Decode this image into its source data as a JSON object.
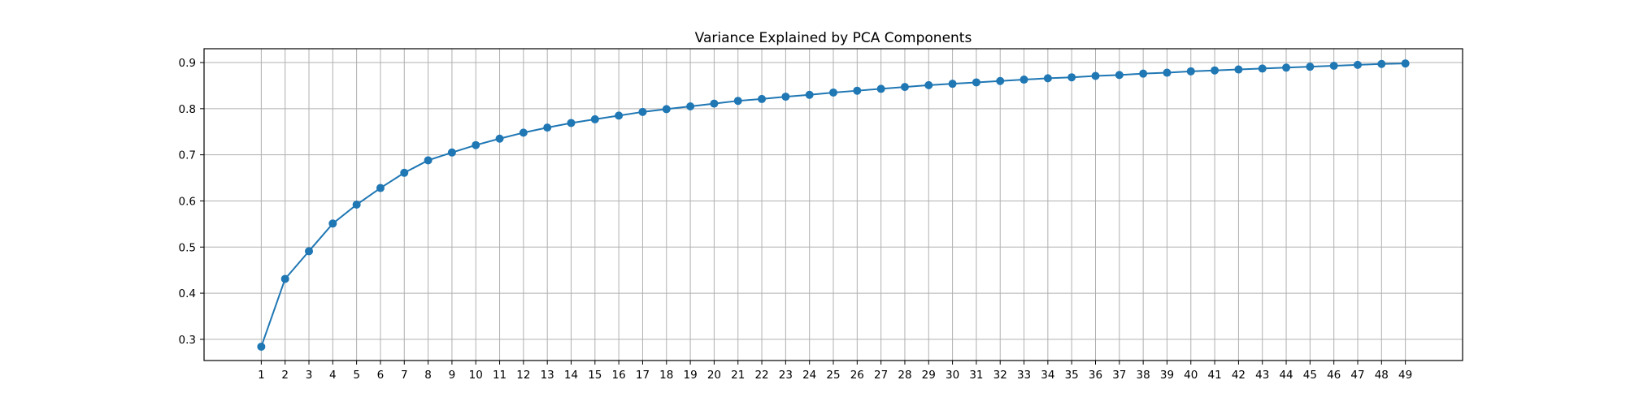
{
  "chart_data": {
    "type": "line",
    "title": "Variance Explained by PCA Components",
    "xlabel": "",
    "ylabel": "",
    "x": [
      1,
      2,
      3,
      4,
      5,
      6,
      7,
      8,
      9,
      10,
      11,
      12,
      13,
      14,
      15,
      16,
      17,
      18,
      19,
      20,
      21,
      22,
      23,
      24,
      25,
      26,
      27,
      28,
      29,
      30,
      31,
      32,
      33,
      34,
      35,
      36,
      37,
      38,
      39,
      40,
      41,
      42,
      43,
      44,
      45,
      46,
      47,
      48,
      49
    ],
    "series": [
      {
        "values": [
          0.284,
          0.431,
          0.491,
          0.551,
          0.592,
          0.628,
          0.661,
          0.688,
          0.705,
          0.721,
          0.735,
          0.748,
          0.759,
          0.769,
          0.777,
          0.785,
          0.793,
          0.799,
          0.805,
          0.811,
          0.817,
          0.821,
          0.826,
          0.83,
          0.835,
          0.839,
          0.843,
          0.847,
          0.851,
          0.854,
          0.857,
          0.86,
          0.863,
          0.866,
          0.868,
          0.871,
          0.873,
          0.876,
          0.878,
          0.881,
          0.883,
          0.885,
          0.887,
          0.889,
          0.891,
          0.893,
          0.895,
          0.897,
          0.898
        ]
      }
    ],
    "xlim": [
      -1.4,
      51.4
    ],
    "ylim": [
      0.254,
      0.93
    ],
    "yticks": [
      0.3,
      0.4,
      0.5,
      0.6,
      0.7,
      0.8,
      0.9
    ],
    "grid": true,
    "marker": "circle",
    "color": "#1f77b4"
  }
}
